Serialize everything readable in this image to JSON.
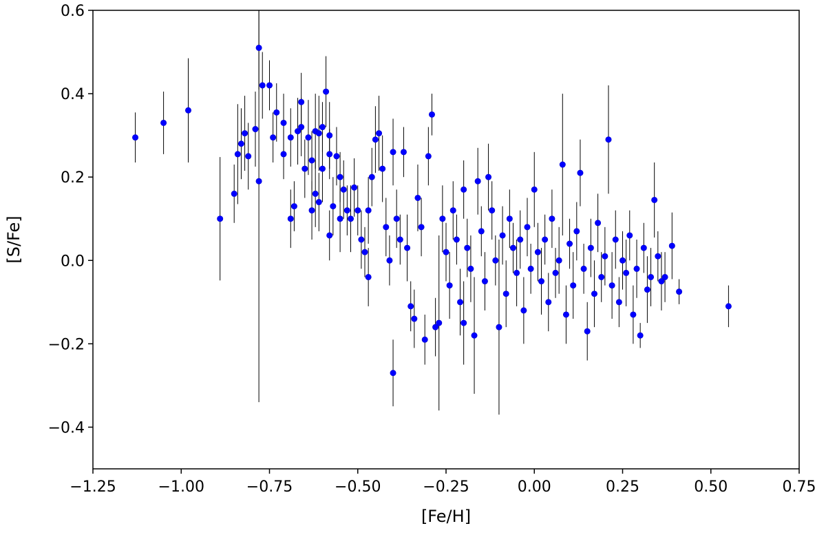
{
  "chart_data": {
    "type": "scatter",
    "xlabel": "[Fe/H]",
    "ylabel": "[S/Fe]",
    "xlim": [
      -1.25,
      0.75
    ],
    "ylim": [
      -0.5,
      0.6
    ],
    "xticks": [
      -1.25,
      -1.0,
      -0.75,
      -0.5,
      -0.25,
      0.0,
      0.25,
      0.5,
      0.75
    ],
    "yticks": [
      -0.4,
      -0.2,
      0.0,
      0.2,
      0.4,
      0.6
    ],
    "xtick_labels": [
      "−1.25",
      "−1.00",
      "−0.75",
      "−0.50",
      "−0.25",
      "0.00",
      "0.25",
      "0.50",
      "0.75"
    ],
    "ytick_labels": [
      "−0.4",
      "−0.2",
      "0.0",
      "0.2",
      "0.4",
      "0.6"
    ],
    "grid": false,
    "marker_color": "#0000ff",
    "errorbar_color": "#000000",
    "series": [
      {
        "points": [
          [
            -1.13,
            0.295,
            0.06
          ],
          [
            -1.05,
            0.33,
            0.075
          ],
          [
            -0.98,
            0.36,
            0.125
          ],
          [
            -0.89,
            0.1,
            0.148
          ],
          [
            -0.85,
            0.16,
            0.07
          ],
          [
            -0.84,
            0.255,
            0.12
          ],
          [
            -0.83,
            0.28,
            0.085
          ],
          [
            -0.82,
            0.305,
            0.09
          ],
          [
            -0.81,
            0.25,
            0.08
          ],
          [
            -0.79,
            0.315,
            0.09
          ],
          [
            -0.78,
            0.51,
            0.1
          ],
          [
            -0.78,
            0.19,
            0.53
          ],
          [
            -0.77,
            0.42,
            0.08
          ],
          [
            -0.75,
            0.42,
            0.06
          ],
          [
            -0.74,
            0.295,
            0.06
          ],
          [
            -0.73,
            0.355,
            0.07
          ],
          [
            -0.71,
            0.33,
            0.07
          ],
          [
            -0.71,
            0.255,
            0.06
          ],
          [
            -0.69,
            0.295,
            0.07
          ],
          [
            -0.69,
            0.1,
            0.07
          ],
          [
            -0.68,
            0.13,
            0.06
          ],
          [
            -0.67,
            0.31,
            0.08
          ],
          [
            -0.66,
            0.38,
            0.07
          ],
          [
            -0.66,
            0.32,
            0.07
          ],
          [
            -0.65,
            0.22,
            0.07
          ],
          [
            -0.64,
            0.295,
            0.09
          ],
          [
            -0.63,
            0.24,
            0.07
          ],
          [
            -0.63,
            0.12,
            0.07
          ],
          [
            -0.62,
            0.31,
            0.09
          ],
          [
            -0.62,
            0.16,
            0.08
          ],
          [
            -0.61,
            0.305,
            0.09
          ],
          [
            -0.61,
            0.14,
            0.07
          ],
          [
            -0.6,
            0.32,
            0.06
          ],
          [
            -0.6,
            0.22,
            0.08
          ],
          [
            -0.59,
            0.405,
            0.085
          ],
          [
            -0.58,
            0.3,
            0.08
          ],
          [
            -0.58,
            0.255,
            0.06
          ],
          [
            -0.58,
            0.06,
            0.06
          ],
          [
            -0.57,
            0.13,
            0.07
          ],
          [
            -0.56,
            0.25,
            0.07
          ],
          [
            -0.55,
            0.2,
            0.06
          ],
          [
            -0.55,
            0.1,
            0.08
          ],
          [
            -0.54,
            0.17,
            0.07
          ],
          [
            -0.53,
            0.12,
            0.06
          ],
          [
            -0.52,
            0.1,
            0.08
          ],
          [
            -0.51,
            0.175,
            0.07
          ],
          [
            -0.5,
            0.12,
            0.06
          ],
          [
            -0.49,
            0.05,
            0.07
          ],
          [
            -0.48,
            0.02,
            0.06
          ],
          [
            -0.47,
            -0.04,
            0.07
          ],
          [
            -0.47,
            0.12,
            0.08
          ],
          [
            -0.46,
            0.2,
            0.07
          ],
          [
            -0.45,
            0.29,
            0.08
          ],
          [
            -0.44,
            0.305,
            0.09
          ],
          [
            -0.43,
            0.22,
            0.08
          ],
          [
            -0.42,
            0.08,
            0.07
          ],
          [
            -0.41,
            0.0,
            0.06
          ],
          [
            -0.4,
            0.26,
            0.08
          ],
          [
            -0.4,
            -0.27,
            0.08
          ],
          [
            -0.39,
            0.1,
            0.07
          ],
          [
            -0.38,
            0.05,
            0.06
          ],
          [
            -0.37,
            0.26,
            0.06
          ],
          [
            -0.36,
            0.03,
            0.08
          ],
          [
            -0.35,
            -0.11,
            0.06
          ],
          [
            -0.34,
            -0.14,
            0.07
          ],
          [
            -0.33,
            0.15,
            0.08
          ],
          [
            -0.32,
            0.08,
            0.07
          ],
          [
            -0.31,
            -0.19,
            0.06
          ],
          [
            -0.3,
            0.25,
            0.07
          ],
          [
            -0.29,
            0.35,
            0.05
          ],
          [
            -0.28,
            -0.16,
            0.07
          ],
          [
            -0.27,
            -0.15,
            0.21
          ],
          [
            -0.26,
            0.1,
            0.08
          ],
          [
            -0.25,
            0.02,
            0.07
          ],
          [
            -0.24,
            -0.06,
            0.08
          ],
          [
            -0.23,
            0.12,
            0.07
          ],
          [
            -0.22,
            0.05,
            0.06
          ],
          [
            -0.21,
            -0.1,
            0.08
          ],
          [
            -0.2,
            0.17,
            0.07
          ],
          [
            -0.2,
            -0.15,
            0.1
          ],
          [
            -0.19,
            0.03,
            0.07
          ],
          [
            -0.18,
            -0.02,
            0.08
          ],
          [
            -0.17,
            -0.18,
            0.14
          ],
          [
            -0.16,
            0.19,
            0.08
          ],
          [
            -0.15,
            0.07,
            0.06
          ],
          [
            -0.14,
            -0.05,
            0.07
          ],
          [
            -0.13,
            0.2,
            0.08
          ],
          [
            -0.12,
            0.12,
            0.07
          ],
          [
            -0.11,
            0.0,
            0.06
          ],
          [
            -0.1,
            -0.16,
            0.21
          ],
          [
            -0.09,
            0.06,
            0.07
          ],
          [
            -0.08,
            -0.08,
            0.08
          ],
          [
            -0.07,
            0.1,
            0.07
          ],
          [
            -0.06,
            0.03,
            0.06
          ],
          [
            -0.05,
            -0.03,
            0.08
          ],
          [
            -0.04,
            0.05,
            0.07
          ],
          [
            -0.03,
            -0.12,
            0.08
          ],
          [
            -0.02,
            0.08,
            0.07
          ],
          [
            -0.01,
            -0.02,
            0.06
          ],
          [
            0.0,
            0.17,
            0.09
          ],
          [
            0.01,
            0.02,
            0.07
          ],
          [
            0.02,
            -0.05,
            0.08
          ],
          [
            0.03,
            0.05,
            0.06
          ],
          [
            0.04,
            -0.1,
            0.07
          ],
          [
            0.05,
            0.1,
            0.07
          ],
          [
            0.06,
            -0.03,
            0.06
          ],
          [
            0.07,
            0.0,
            0.08
          ],
          [
            0.08,
            0.23,
            0.17
          ],
          [
            0.09,
            -0.13,
            0.07
          ],
          [
            0.1,
            0.04,
            0.06
          ],
          [
            0.11,
            -0.06,
            0.08
          ],
          [
            0.12,
            0.07,
            0.07
          ],
          [
            0.13,
            0.21,
            0.08
          ],
          [
            0.14,
            -0.02,
            0.06
          ],
          [
            0.15,
            -0.17,
            0.07
          ],
          [
            0.16,
            0.03,
            0.07
          ],
          [
            0.17,
            -0.08,
            0.08
          ],
          [
            0.18,
            0.09,
            0.07
          ],
          [
            0.19,
            -0.04,
            0.06
          ],
          [
            0.2,
            0.01,
            0.07
          ],
          [
            0.21,
            0.29,
            0.13
          ],
          [
            0.22,
            -0.06,
            0.08
          ],
          [
            0.23,
            0.05,
            0.07
          ],
          [
            0.24,
            -0.1,
            0.06
          ],
          [
            0.25,
            0.0,
            0.07
          ],
          [
            0.26,
            -0.03,
            0.08
          ],
          [
            0.27,
            0.06,
            0.06
          ],
          [
            0.28,
            -0.13,
            0.07
          ],
          [
            0.29,
            -0.02,
            0.07
          ],
          [
            0.3,
            -0.18,
            0.03
          ],
          [
            0.31,
            0.03,
            0.06
          ],
          [
            0.32,
            -0.07,
            0.08
          ],
          [
            0.33,
            -0.04,
            0.07
          ],
          [
            0.34,
            0.145,
            0.09
          ],
          [
            0.35,
            0.01,
            0.06
          ],
          [
            0.36,
            -0.05,
            0.07
          ],
          [
            0.37,
            -0.04,
            0.06
          ],
          [
            0.39,
            0.035,
            0.08
          ],
          [
            0.41,
            -0.075,
            0.03
          ],
          [
            0.55,
            -0.11,
            0.05
          ]
        ]
      }
    ]
  }
}
